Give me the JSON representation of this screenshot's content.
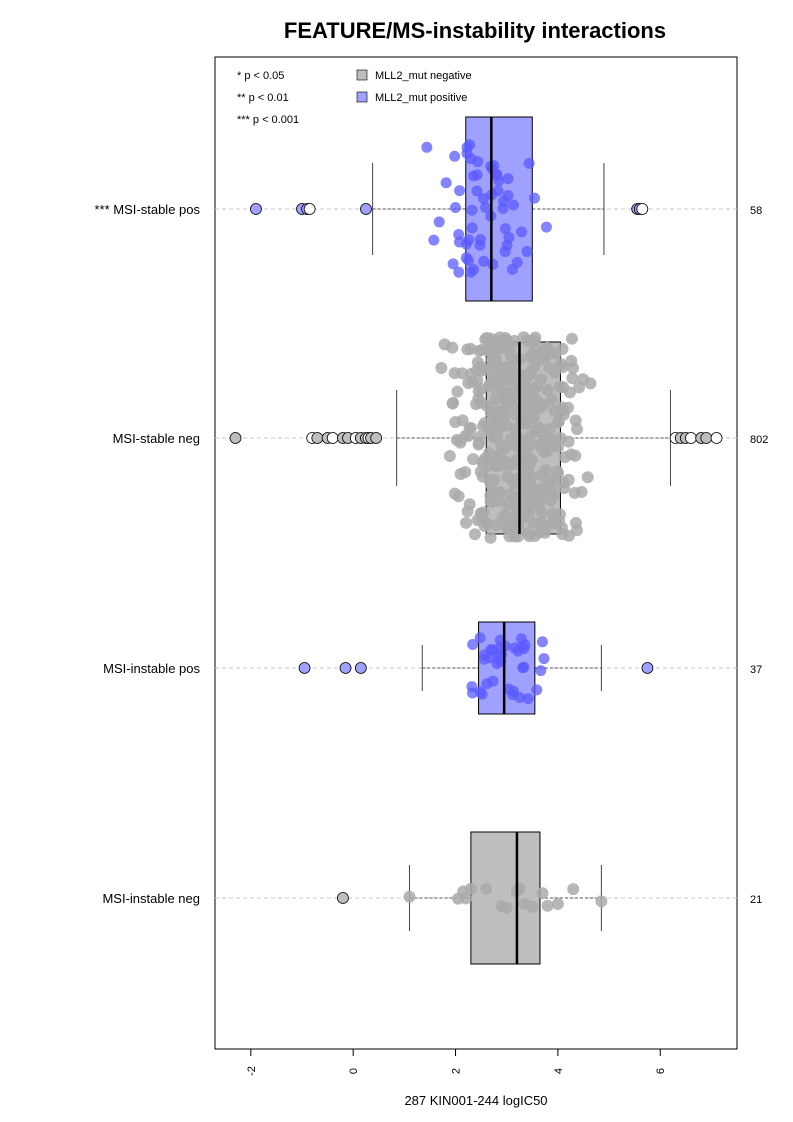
{
  "chart_data": {
    "type": "box",
    "title": "FEATURE/MS-instability interactions",
    "xlabel": "287 KIN001-244 logIC50",
    "xlim": [
      -2.7,
      7.5
    ],
    "x_ticks": [
      "-2",
      "0",
      "2",
      "4",
      "6"
    ],
    "x_tick_values": [
      -2,
      0,
      2,
      4,
      6
    ],
    "orientation": "horizontal",
    "grid": "dashed horizontal guide lines per group",
    "significance_key": [
      "* p < 0.05",
      "** p < 0.01",
      "*** p < 0.001"
    ],
    "legend": [
      {
        "label": "MLL2_mut negative",
        "color": "#bebebe"
      },
      {
        "label": "MLL2_mut positive",
        "color": "#a0a0ff"
      }
    ],
    "legend_position": "top-left",
    "colors": {
      "negative_box": "#bebebe",
      "positive_box": "#a0a0ff",
      "negative_point": "#aaaaaa",
      "positive_point": "#5b5bff",
      "guide_line": "#c8c8c8"
    },
    "groups": [
      {
        "label": "*** MSI-stable pos",
        "n": "58",
        "mutation": "positive",
        "whisker_low": 0.38,
        "q1": 2.2,
        "median": 2.7,
        "q3": 3.5,
        "whisker_high": 4.9,
        "outliers": [
          -1.9,
          -1.0,
          -0.9,
          -0.85,
          0.25,
          5.55,
          5.6,
          5.65
        ]
      },
      {
        "label": "MSI-stable neg",
        "n": "802",
        "mutation": "negative",
        "whisker_low": 0.85,
        "q1": 2.6,
        "median": 3.25,
        "q3": 4.05,
        "whisker_high": 6.2,
        "outliers": [
          -2.3,
          -0.8,
          -0.7,
          -0.5,
          -0.4,
          -0.2,
          -0.1,
          0.05,
          0.15,
          0.25,
          0.3,
          0.35,
          0.45,
          6.3,
          6.4,
          6.5,
          6.6,
          6.8,
          6.9,
          7.1
        ]
      },
      {
        "label": "MSI-instable pos",
        "n": "37",
        "mutation": "positive",
        "whisker_low": 1.35,
        "q1": 2.45,
        "median": 2.95,
        "q3": 3.55,
        "whisker_high": 4.85,
        "outliers": [
          -0.95,
          -0.15,
          0.15,
          5.75
        ]
      },
      {
        "label": "MSI-instable neg",
        "n": "21",
        "mutation": "negative",
        "whisker_low": 1.1,
        "q1": 2.3,
        "median": 3.2,
        "q3": 3.65,
        "whisker_high": 4.85,
        "outliers": [
          -0.2
        ],
        "points": [
          1.1,
          2.05,
          2.15,
          2.2,
          2.3,
          2.6,
          2.9,
          3.0,
          3.2,
          3.25,
          3.35,
          3.5,
          3.7,
          3.8,
          4.0,
          4.3,
          4.85
        ]
      }
    ]
  }
}
